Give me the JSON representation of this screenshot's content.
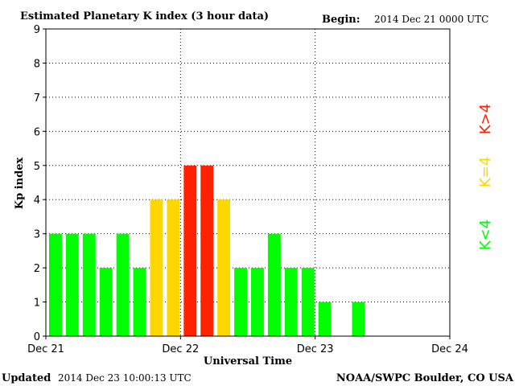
{
  "header": {
    "title": "Estimated Planetary K index (3 hour data)",
    "begin_label": "Begin:",
    "begin_value": "2014 Dec 21 0000 UTC"
  },
  "footer": {
    "updated_label": "Updated",
    "updated_value": "2014 Dec 23 10:00:13 UTC",
    "source": "NOAA/SWPC Boulder, CO USA"
  },
  "legend": [
    {
      "label": "K<4",
      "color": "#00ff00"
    },
    {
      "label": "K=4",
      "color": "#ffd700"
    },
    {
      "label": "K>4",
      "color": "#ff2200"
    }
  ],
  "chart_data": {
    "type": "bar",
    "title": "Estimated Planetary K index (3 hour data)",
    "xlabel": "Universal Time",
    "ylabel": "Kp index",
    "ylim": [
      0,
      9
    ],
    "yticks": [
      0,
      1,
      2,
      3,
      4,
      5,
      6,
      7,
      8,
      9
    ],
    "xtick_labels": [
      "Dec 21",
      "Dec 22",
      "Dec 23",
      "Dec 24"
    ],
    "interval_hours": 3,
    "grid": true,
    "values": [
      3,
      3,
      3,
      2,
      3,
      2,
      4,
      4,
      5,
      5,
      4,
      2,
      2,
      3,
      2,
      2,
      1,
      null,
      1,
      null,
      null,
      null,
      null,
      null
    ],
    "colors": {
      "low": "#00ff00",
      "equal": "#ffd700",
      "high": "#ff2200"
    }
  }
}
